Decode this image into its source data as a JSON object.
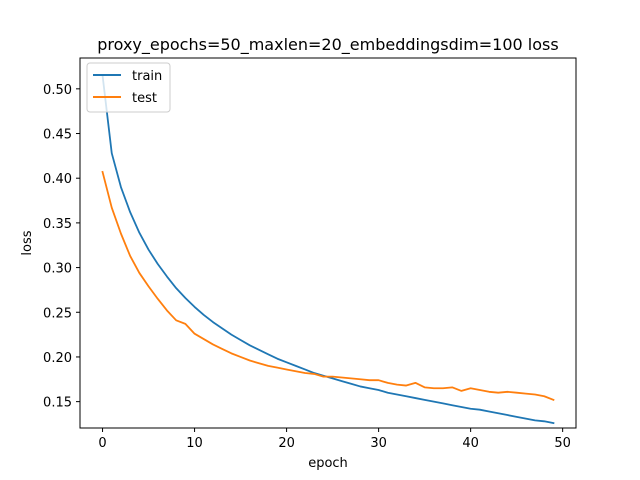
{
  "chart_data": {
    "type": "line",
    "title": "proxy_epochs=50_maxlen=20_embeddingsdim=100 loss",
    "xlabel": "epoch",
    "ylabel": "loss",
    "xlim": [
      -2.45,
      51.45
    ],
    "ylim": [
      0.1205,
      0.5345
    ],
    "xticks": [
      0,
      10,
      20,
      30,
      40,
      50
    ],
    "yticks": [
      0.15,
      0.2,
      0.25,
      0.3,
      0.35,
      0.4,
      0.45,
      0.5
    ],
    "ytick_labels": [
      "0.15",
      "0.20",
      "0.25",
      "0.30",
      "0.35",
      "0.40",
      "0.45",
      "0.50"
    ],
    "grid": false,
    "legend_position": "top-left",
    "x": [
      0,
      1,
      2,
      3,
      4,
      5,
      6,
      7,
      8,
      9,
      10,
      11,
      12,
      13,
      14,
      15,
      16,
      17,
      18,
      19,
      20,
      21,
      22,
      23,
      24,
      25,
      26,
      27,
      28,
      29,
      30,
      31,
      32,
      33,
      34,
      35,
      36,
      37,
      38,
      39,
      40,
      41,
      42,
      43,
      44,
      45,
      46,
      47,
      48,
      49
    ],
    "series": [
      {
        "name": "train",
        "color": "#1f77b4",
        "values": [
          0.515,
          0.428,
          0.39,
          0.362,
          0.339,
          0.32,
          0.304,
          0.29,
          0.277,
          0.266,
          0.256,
          0.247,
          0.239,
          0.232,
          0.225,
          0.219,
          0.213,
          0.208,
          0.203,
          0.198,
          0.194,
          0.19,
          0.186,
          0.182,
          0.179,
          0.176,
          0.173,
          0.17,
          0.167,
          0.165,
          0.163,
          0.16,
          0.158,
          0.156,
          0.154,
          0.152,
          0.15,
          0.148,
          0.146,
          0.144,
          0.142,
          0.141,
          0.139,
          0.137,
          0.135,
          0.133,
          0.131,
          0.129,
          0.128,
          0.126
        ]
      },
      {
        "name": "test",
        "color": "#ff7f0e",
        "values": [
          0.407,
          0.367,
          0.338,
          0.313,
          0.294,
          0.279,
          0.265,
          0.252,
          0.241,
          0.237,
          0.226,
          0.22,
          0.214,
          0.209,
          0.204,
          0.2,
          0.196,
          0.193,
          0.19,
          0.188,
          0.186,
          0.184,
          0.182,
          0.181,
          0.178,
          0.178,
          0.177,
          0.176,
          0.175,
          0.174,
          0.174,
          0.171,
          0.169,
          0.168,
          0.171,
          0.166,
          0.165,
          0.165,
          0.166,
          0.162,
          0.165,
          0.163,
          0.161,
          0.16,
          0.161,
          0.16,
          0.159,
          0.158,
          0.156,
          0.152
        ]
      }
    ]
  }
}
